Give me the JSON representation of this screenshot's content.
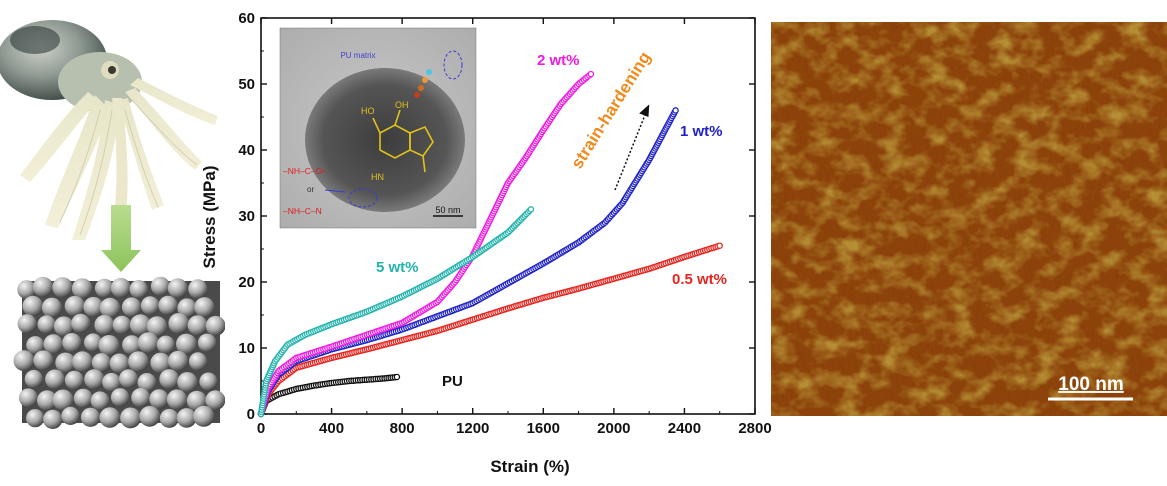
{
  "colors": {
    "pu": "#111111",
    "w05": "#e8251f",
    "w1": "#1f21c9",
    "w2": "#f01ae2",
    "w5": "#22b3ad",
    "arrow_annotation": "#f08a1c",
    "afm_dark": "#7a2e0a",
    "afm_light": "#d8c23a"
  },
  "afm": {
    "scale_bar_label": "100 nm"
  },
  "tem_inset": {
    "label_matrix": "PU matrix",
    "label_or": "or",
    "scale_label": "50 nm",
    "chem_urethane": "–NH–C–O–",
    "chem_urea": "–NH–C–N",
    "chem_oh": "HO",
    "chem_oh2": "OH",
    "chem_hn": "HN"
  },
  "chart_data": {
    "type": "scatter",
    "xlabel": "Strain (%)",
    "ylabel": "Stress (MPa)",
    "xlim": [
      0,
      2800
    ],
    "ylim": [
      0,
      60
    ],
    "xticks": [
      0,
      400,
      800,
      1200,
      1600,
      2000,
      2400,
      2800
    ],
    "yticks": [
      0,
      10,
      20,
      30,
      40,
      50,
      60
    ],
    "annotation": "strain-hardening",
    "series": [
      {
        "name": "PU",
        "key": "pu",
        "x": [
          0,
          30,
          100,
          200,
          300,
          400,
          500,
          600,
          700,
          770
        ],
        "y": [
          0,
          2.0,
          3.0,
          3.8,
          4.3,
          4.7,
          5.0,
          5.2,
          5.4,
          5.6
        ]
      },
      {
        "name": "0.5 wt%",
        "key": "w05",
        "x": [
          0,
          40,
          100,
          200,
          400,
          600,
          800,
          1000,
          1200,
          1400,
          1600,
          1800,
          2000,
          2200,
          2400,
          2600
        ],
        "y": [
          0,
          3.0,
          5.0,
          7.0,
          8.5,
          9.8,
          11.2,
          12.6,
          14.3,
          16.0,
          17.6,
          19.0,
          20.5,
          22.0,
          23.8,
          25.5
        ]
      },
      {
        "name": "1 wt%",
        "key": "w1",
        "x": [
          0,
          40,
          100,
          200,
          400,
          600,
          800,
          1000,
          1200,
          1400,
          1600,
          1800,
          1950,
          2050,
          2200,
          2350
        ],
        "y": [
          0,
          3.5,
          6.0,
          8.0,
          9.8,
          11.2,
          12.8,
          14.8,
          16.8,
          19.8,
          22.8,
          26.0,
          29.0,
          32.0,
          38.5,
          46.0
        ]
      },
      {
        "name": "2 wt%",
        "key": "w2",
        "x": [
          0,
          40,
          100,
          200,
          400,
          600,
          800,
          1000,
          1100,
          1200,
          1300,
          1400,
          1500,
          1600,
          1700,
          1800,
          1870
        ],
        "y": [
          0,
          4.0,
          6.5,
          8.5,
          10.2,
          12.0,
          13.8,
          17.0,
          20.0,
          24.0,
          29.5,
          35.0,
          38.8,
          43.0,
          47.0,
          50.0,
          51.5
        ]
      },
      {
        "name": "5 wt%",
        "key": "w5",
        "x": [
          0,
          30,
          80,
          150,
          250,
          400,
          600,
          800,
          1000,
          1200,
          1400,
          1530
        ],
        "y": [
          0,
          5.0,
          8.0,
          10.5,
          12.0,
          13.6,
          15.5,
          17.8,
          20.5,
          23.8,
          27.5,
          31.0
        ]
      }
    ]
  }
}
